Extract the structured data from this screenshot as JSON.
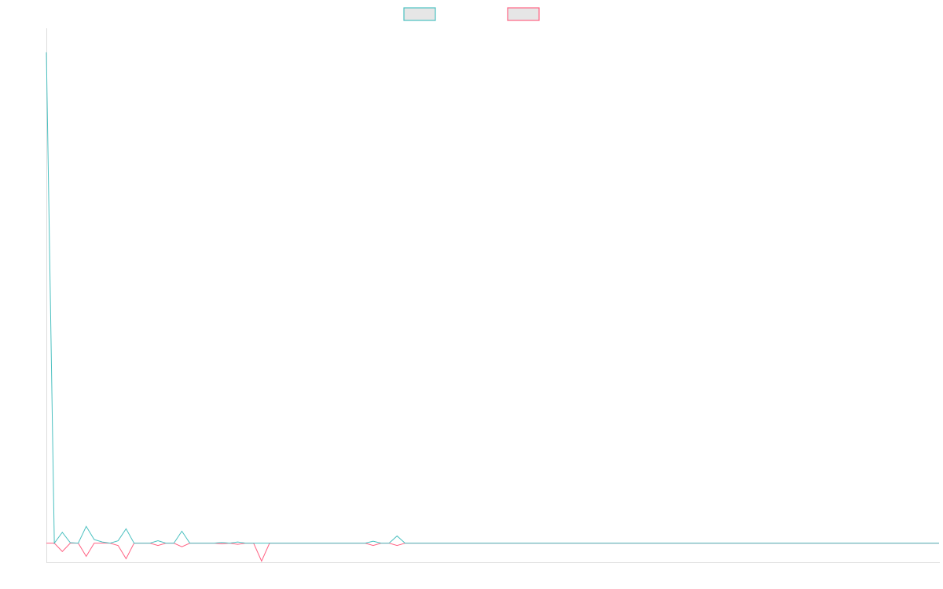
{
  "chart_data": {
    "type": "line",
    "title": "",
    "xlabel": "",
    "ylabel": "",
    "grid": false,
    "legend": {
      "position": "top-center",
      "entries": [
        {
          "series": 0,
          "label": ""
        },
        {
          "series": 1,
          "label": ""
        }
      ]
    },
    "x": [
      0,
      1,
      2,
      3,
      4,
      5,
      6,
      7,
      8,
      9,
      10,
      11,
      12,
      13,
      14,
      15,
      16,
      17,
      18,
      19,
      20,
      21,
      22,
      23,
      24,
      25,
      26,
      27,
      28,
      29,
      30,
      31,
      32,
      33,
      34,
      35,
      36,
      37,
      38,
      39,
      40,
      41,
      42,
      43,
      44,
      45,
      46,
      47,
      48,
      49,
      50,
      51,
      52,
      53,
      54,
      55,
      56,
      57,
      58,
      59,
      60,
      61,
      62,
      63,
      64,
      65,
      66,
      67,
      68,
      69,
      70,
      71,
      72,
      73,
      74,
      75,
      76,
      77,
      78,
      79,
      80,
      81,
      82,
      83,
      84,
      85,
      86,
      87,
      88,
      89,
      90,
      91,
      92,
      93,
      94,
      95,
      96,
      97,
      98,
      99,
      100,
      101,
      102,
      103,
      104,
      105,
      106,
      107,
      108,
      109,
      110,
      111,
      112
    ],
    "xlim": [
      0,
      112
    ],
    "ylim": [
      -8,
      215
    ],
    "series": [
      {
        "name": "",
        "color": "#4bc0c0",
        "values": [
          205,
          0,
          4.5,
          0.2,
          0,
          7,
          1.5,
          0.5,
          0,
          1,
          6,
          0,
          0,
          0,
          1,
          0,
          0,
          5,
          0,
          0,
          0,
          0,
          0.3,
          0,
          0.5,
          0,
          0,
          0,
          0,
          0,
          0,
          0,
          0,
          0,
          0,
          0,
          0,
          0,
          0,
          0,
          0,
          0.8,
          0,
          0,
          3,
          0,
          0,
          0,
          0,
          0,
          0,
          0,
          0,
          0,
          0,
          0,
          0,
          0,
          0,
          0,
          0,
          0,
          0,
          0,
          0,
          0,
          0,
          0,
          0,
          0,
          0,
          0,
          0,
          0,
          0,
          0,
          0,
          0,
          0,
          0,
          0,
          0,
          0,
          0,
          0,
          0,
          0,
          0,
          0,
          0,
          0,
          0,
          0,
          0,
          0,
          0,
          0,
          0,
          0,
          0,
          0,
          0,
          0,
          0,
          0,
          0,
          0,
          0,
          0,
          0,
          0,
          0,
          0
        ]
      },
      {
        "name": "",
        "color": "#ff6384",
        "values": [
          0,
          0,
          -3.5,
          0,
          0,
          -5.5,
          0,
          0,
          0,
          -1,
          -6.5,
          0,
          0,
          0,
          -1,
          0,
          0,
          -1.5,
          0,
          0,
          0,
          0,
          -0.3,
          0,
          -0.5,
          0,
          0,
          -7.5,
          0,
          0,
          0,
          0,
          0,
          0,
          0,
          0,
          0,
          0,
          0,
          0,
          0,
          -1,
          0,
          0,
          -1,
          0,
          0,
          0,
          0,
          0,
          0,
          0,
          0,
          0,
          0,
          0,
          0,
          0,
          0,
          0,
          0,
          0,
          0,
          0,
          0,
          0,
          0,
          0,
          0,
          0,
          0,
          0,
          0,
          0,
          0,
          0,
          0,
          0,
          0,
          0,
          0,
          0,
          0,
          0,
          0,
          0,
          0,
          0,
          0,
          0,
          0,
          0,
          0,
          0,
          0,
          0,
          0,
          0,
          0,
          0,
          0,
          0,
          0,
          0,
          0,
          0,
          0,
          0,
          0,
          0,
          0,
          0,
          0
        ]
      }
    ]
  }
}
